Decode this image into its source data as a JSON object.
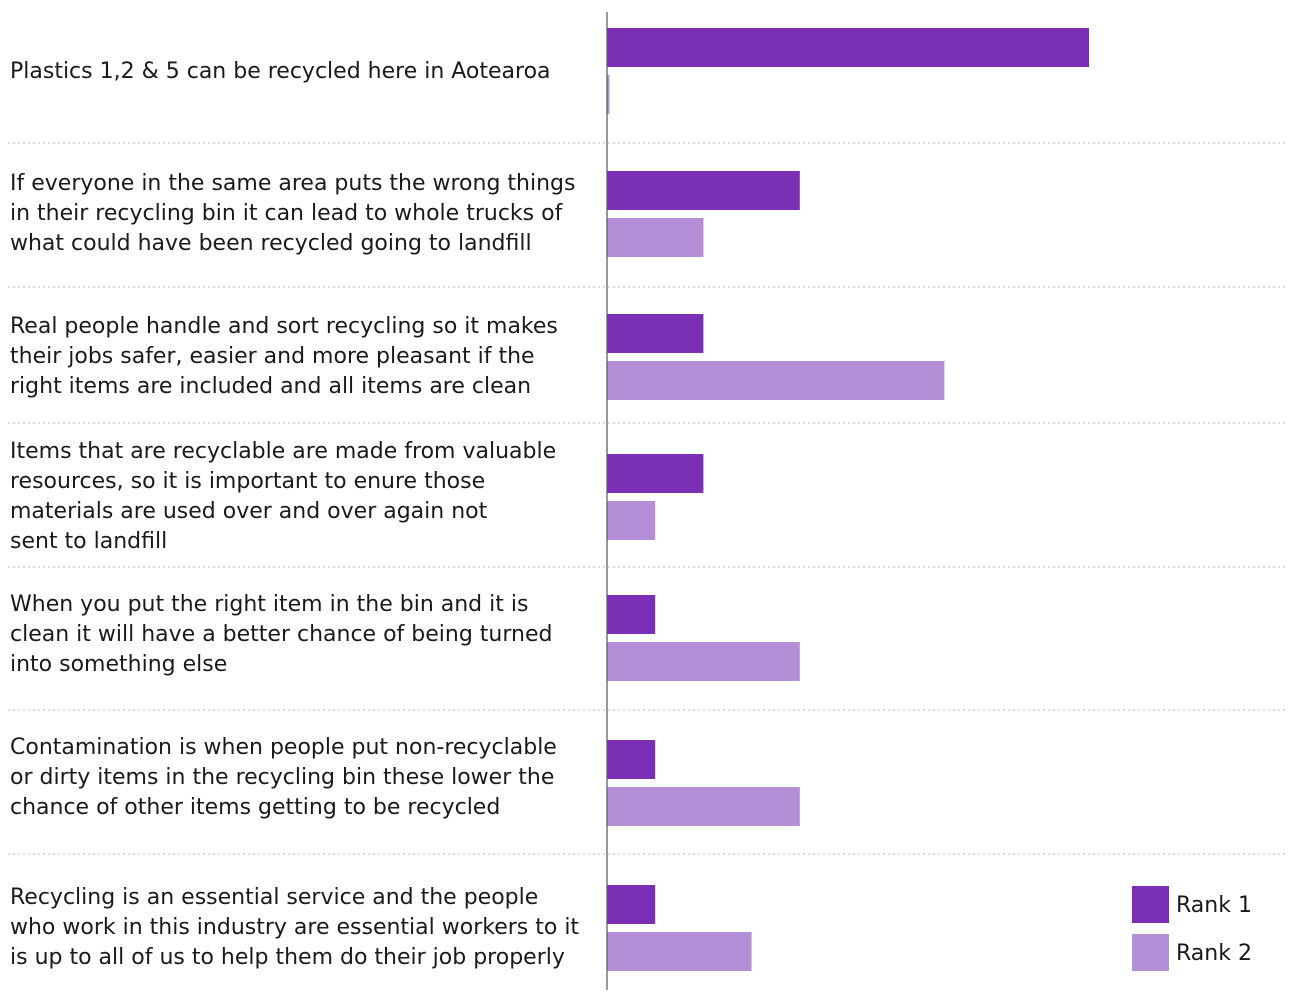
{
  "chart_data": {
    "type": "bar",
    "orientation": "horizontal",
    "categories": [
      "Plastics 1,2 & 5 can be recycled here in Aotearoa",
      "If everyone in the same area puts the wrong things in their recycling bin it can lead to whole trucks of what could have been recycled going to landfill",
      "Real people handle and sort recycling so it makes their jobs safer, easier and more pleasant if the right items are included and all items are clean",
      "Items that are recyclable are made from valuable resources, so it is important to enure those materials are used over and over again not sent to landfill",
      "When you put the right item in the bin and it is clean it will have a better chance of being turned into something else",
      "Contamination is when people put non-recyclable or dirty items in the recycling bin these lower the chance of other items getting to be recycled",
      "Recycling is an essential service and the people who work in this industry are essential workers to it is up to all of us to help them do their job properly"
    ],
    "category_lines": [
      [
        "Plastics 1,2 & 5 can be recycled here in Aotearoa"
      ],
      [
        "If everyone in the same area puts the wrong things",
        "in their recycling bin it can lead to whole trucks of",
        "what could have been recycled going to landfill"
      ],
      [
        "Real people handle and sort recycling so it makes",
        "their jobs safer, easier and more pleasant if the",
        "right items are included and all items are clean"
      ],
      [
        "Items that are recyclable are made from valuable",
        "resources, so it is important to enure those",
        "materials are used over and over again not",
        "sent to landfill"
      ],
      [
        "When you put the right item in the bin and it is",
        "clean it will have a better chance of being turned",
        "into something else"
      ],
      [
        "Contamination is when people put non-recyclable",
        "or dirty items in the recycling bin these lower the",
        "chance of other items getting to be recycled"
      ],
      [
        "Recycling is an essential service and the people",
        "who work in this industry are essential workers to it",
        "is up to all of us to help them do their job properly"
      ]
    ],
    "series": [
      {
        "name": "Rank 1",
        "color": "#7b2fb5",
        "values": [
          10,
          4,
          2,
          2,
          1,
          1,
          1
        ]
      },
      {
        "name": "Rank 2",
        "color": "#b48fd8",
        "values": [
          0.05,
          2,
          7,
          1,
          4,
          4,
          3
        ]
      }
    ],
    "xlim": [
      0,
      14
    ],
    "grid": false,
    "separators": "dotted",
    "legend": "bottom-right"
  }
}
